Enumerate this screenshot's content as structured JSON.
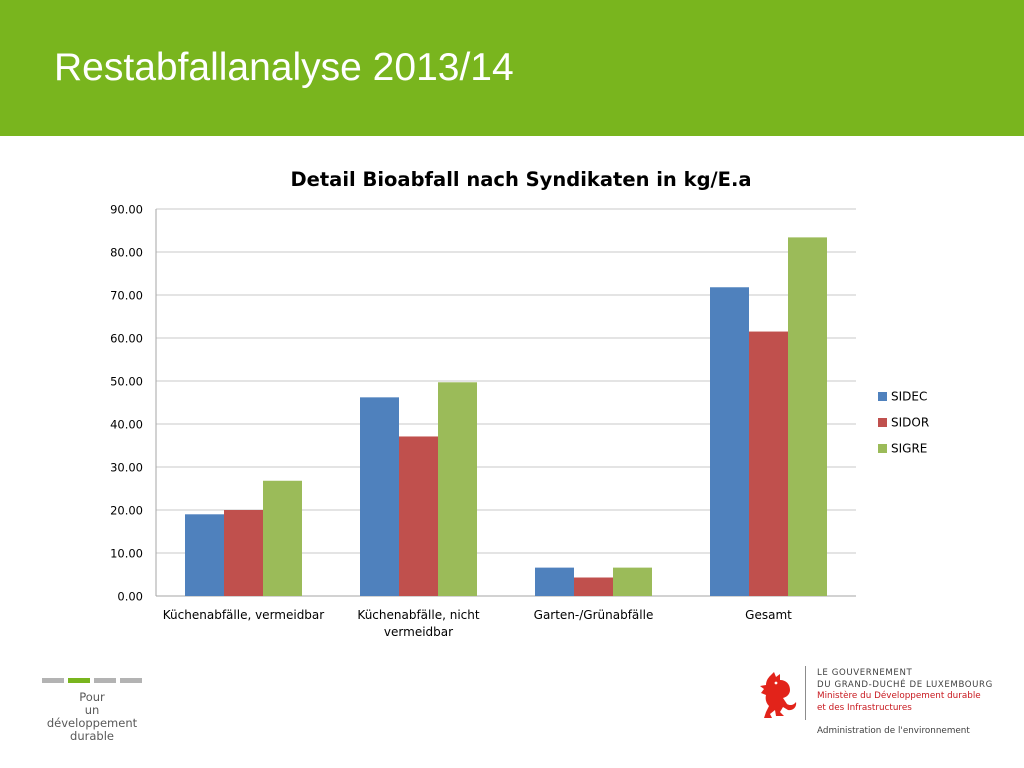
{
  "slide": {
    "title": "Restabfallanalyse 2013/14"
  },
  "colors": {
    "header_bg": "#79b51e",
    "sidec": "#4f81bd",
    "sidor": "#c0504d",
    "sigre": "#9bbb59"
  },
  "chart_data": {
    "type": "bar",
    "title": "Detail Bioabfall nach Syndikaten in kg/E.a",
    "categories": [
      [
        "Küchenabfälle, vermeidbar"
      ],
      [
        "Küchenabfälle, nicht",
        "vermeidbar"
      ],
      [
        "Garten-/Grünabfälle"
      ],
      [
        "Gesamt"
      ]
    ],
    "series": [
      {
        "name": "SIDEC",
        "color": "#4f81bd",
        "values": [
          19.0,
          46.2,
          6.6,
          71.8
        ]
      },
      {
        "name": "SIDOR",
        "color": "#c0504d",
        "values": [
          20.0,
          37.1,
          4.3,
          61.5
        ]
      },
      {
        "name": "SIGRE",
        "color": "#9bbb59",
        "values": [
          26.8,
          49.7,
          6.6,
          83.4
        ]
      }
    ],
    "ylim": [
      0,
      90
    ],
    "yticks": [
      0,
      10,
      20,
      30,
      40,
      50,
      60,
      70,
      80,
      90
    ],
    "ytick_labels": [
      "0.00",
      "10.00",
      "20.00",
      "30.00",
      "40.00",
      "50.00",
      "60.00",
      "70.00",
      "80.00",
      "90.00"
    ],
    "grid": true,
    "legend_position": "right"
  },
  "footer": {
    "sdd_line1": "Pour",
    "sdd_line2": "un développement",
    "sdd_line3": "durable",
    "gov_line1": "LE GOUVERNEMENT",
    "gov_line2": "DU GRAND-DUCHÉ DE LUXEMBOURG",
    "gov_line3": "Ministère du Développement durable",
    "gov_line4": "et des Infrastructures",
    "gov_line5": "Administration de l'environnement"
  }
}
